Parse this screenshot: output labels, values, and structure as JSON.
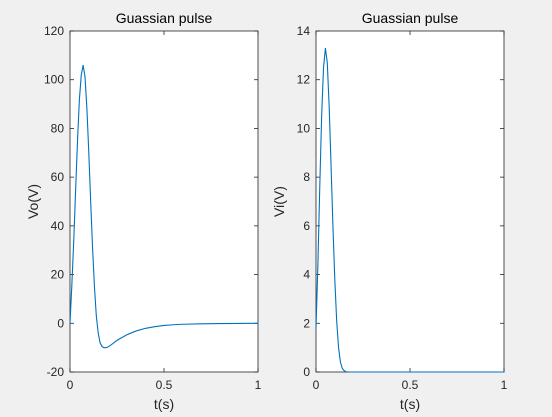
{
  "chart_data": [
    {
      "type": "line",
      "title": "Guassian pulse",
      "xlabel": "t(s)",
      "ylabel": "Vo(V)",
      "xlim": [
        0,
        1
      ],
      "ylim": [
        -20,
        120
      ],
      "xticks": [
        0,
        0.5,
        1
      ],
      "xtick_labels": [
        "0",
        "0.5",
        "1"
      ],
      "yticks": [
        -20,
        0,
        20,
        40,
        60,
        80,
        100,
        120
      ],
      "ytick_labels": [
        "-20",
        "0",
        "20",
        "40",
        "60",
        "80",
        "100",
        "120"
      ],
      "grid": false,
      "color": "#0072bd",
      "series": [
        {
          "x": [
            0,
            0.01,
            0.02,
            0.03,
            0.04,
            0.05,
            0.06,
            0.07,
            0.08,
            0.09,
            0.1,
            0.11,
            0.12,
            0.13,
            0.14,
            0.15,
            0.16,
            0.17,
            0.18,
            0.19,
            0.2,
            0.22,
            0.25,
            0.3,
            0.35,
            0.4,
            0.45,
            0.5,
            0.55,
            0.6,
            0.7,
            0.8,
            0.9,
            1.0
          ],
          "values": [
            0,
            16,
            34,
            55,
            75,
            92,
            102,
            106,
            101,
            88,
            70,
            50,
            31,
            15,
            3,
            -4,
            -8,
            -9.5,
            -10,
            -10,
            -9.8,
            -8.8,
            -7,
            -4.8,
            -3.2,
            -2.1,
            -1.4,
            -0.9,
            -0.6,
            -0.4,
            -0.2,
            -0.1,
            -0.05,
            0
          ]
        }
      ]
    },
    {
      "type": "line",
      "title": "Guassian pulse",
      "xlabel": "t(s)",
      "ylabel": "Vi(V)",
      "xlim": [
        0,
        1
      ],
      "ylim": [
        0,
        14
      ],
      "xticks": [
        0,
        0.5,
        1
      ],
      "xtick_labels": [
        "0",
        "0.5",
        "1"
      ],
      "yticks": [
        0,
        2,
        4,
        6,
        8,
        10,
        12,
        14
      ],
      "ytick_labels": [
        "0",
        "2",
        "4",
        "6",
        "8",
        "10",
        "12",
        "14"
      ],
      "grid": false,
      "color": "#0072bd",
      "series": [
        {
          "x": [
            0,
            0.01,
            0.02,
            0.03,
            0.04,
            0.05,
            0.06,
            0.07,
            0.08,
            0.09,
            0.1,
            0.11,
            0.12,
            0.13,
            0.14,
            0.15,
            0.16,
            0.18,
            0.2,
            0.3,
            0.5,
            0.7,
            1.0
          ],
          "values": [
            1.8,
            4.4,
            7.6,
            10.5,
            12.5,
            13.3,
            12.7,
            10.9,
            8.5,
            6.0,
            3.8,
            2.1,
            1.0,
            0.4,
            0.15,
            0.05,
            0.01,
            0,
            0,
            0,
            0,
            0,
            0
          ]
        }
      ]
    }
  ]
}
